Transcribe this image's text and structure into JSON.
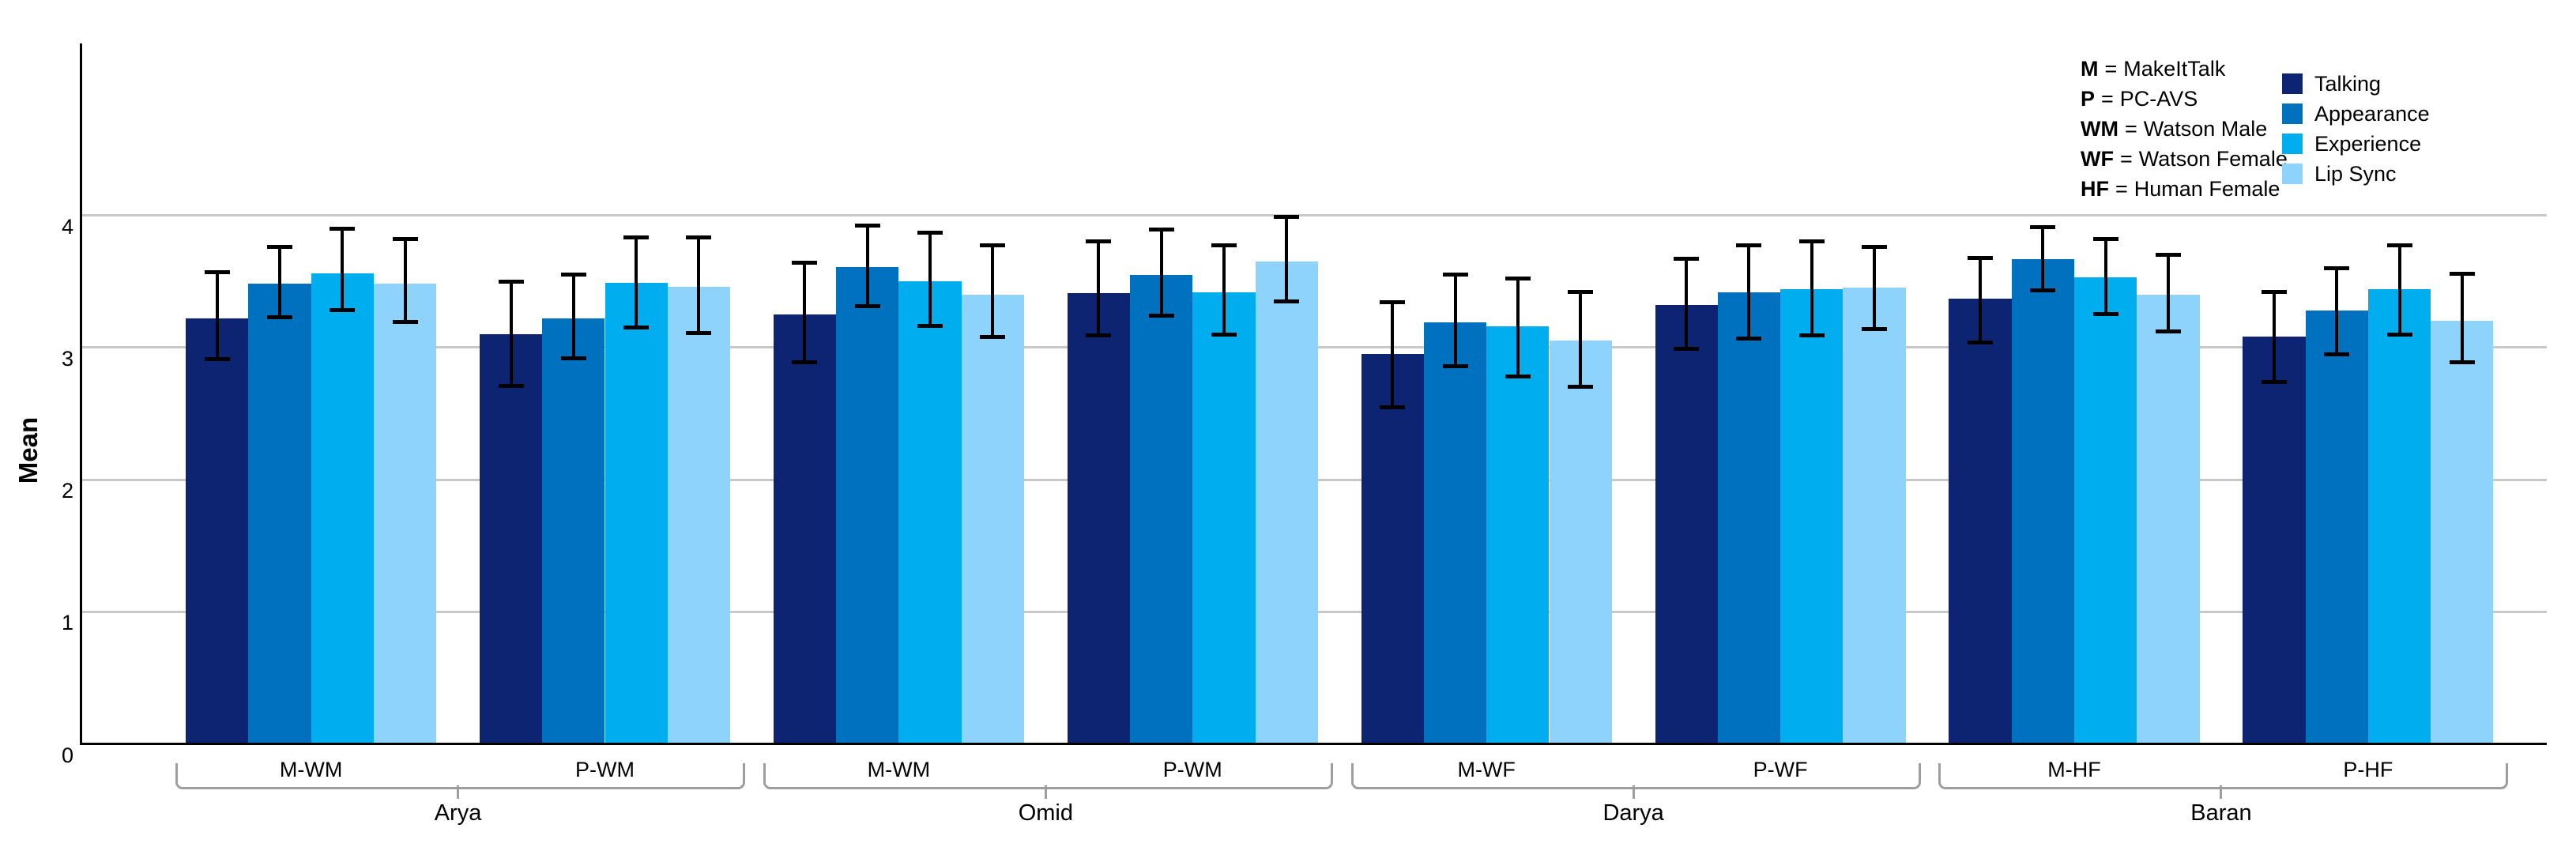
{
  "chart_data": {
    "type": "bar",
    "title": "",
    "xlabel": "",
    "ylabel": "Mean",
    "ylim": [
      0,
      5.3
    ],
    "yticks": [
      "0",
      "1",
      "2",
      "3",
      "4"
    ],
    "grid": "horizontal",
    "legend_position": "top-right",
    "colors": {
      "grid": "#C8C8C8",
      "axis": "#000000",
      "error_bar": "#000000",
      "bracket": "#9E9E9E"
    },
    "series": [
      {
        "name": "Talking",
        "color": "#0D2473"
      },
      {
        "name": "Appearance",
        "color": "#0071BE"
      },
      {
        "name": "Experience",
        "color": "#00AEEF"
      },
      {
        "name": "Lip Sync",
        "color": "#8ED3FB"
      }
    ],
    "groups": [
      {
        "label": "Arya",
        "clusters": [
          {
            "label": "M-WM",
            "values": [
              3.22,
              3.48,
              3.56,
              3.48
            ],
            "err_low": [
              2.91,
              3.23,
              3.28,
              3.19
            ],
            "err_high": [
              3.57,
              3.76,
              3.9,
              3.82
            ]
          },
          {
            "label": "P-WM",
            "values": [
              3.1,
              3.22,
              3.49,
              3.46
            ],
            "err_low": [
              2.71,
              2.92,
              3.15,
              3.11
            ],
            "err_high": [
              3.5,
              3.55,
              3.83,
              3.83
            ]
          }
        ]
      },
      {
        "label": "Omid",
        "clusters": [
          {
            "label": "M-WM",
            "values": [
              3.25,
              3.61,
              3.5,
              3.4
            ],
            "err_low": [
              2.89,
              3.31,
              3.16,
              3.08
            ],
            "err_high": [
              3.64,
              3.92,
              3.87,
              3.77
            ]
          },
          {
            "label": "P-WM",
            "values": [
              3.41,
              3.55,
              3.42,
              3.65
            ],
            "err_low": [
              3.09,
              3.24,
              3.1,
              3.35
            ],
            "err_high": [
              3.8,
              3.89,
              3.77,
              3.99
            ]
          }
        ]
      },
      {
        "label": "Darya",
        "clusters": [
          {
            "label": "M-WF",
            "values": [
              2.95,
              3.19,
              3.16,
              3.05
            ],
            "err_low": [
              2.55,
              2.86,
              2.78,
              2.7
            ],
            "err_high": [
              3.34,
              3.55,
              3.52,
              3.42
            ]
          },
          {
            "label": "P-WF",
            "values": [
              3.32,
              3.42,
              3.44,
              3.45
            ],
            "err_low": [
              2.99,
              3.07,
              3.09,
              3.14
            ],
            "err_high": [
              3.67,
              3.77,
              3.8,
              3.76
            ]
          }
        ]
      },
      {
        "label": "Baran",
        "clusters": [
          {
            "label": "M-HF",
            "values": [
              3.37,
              3.67,
              3.53,
              3.4
            ],
            "err_low": [
              3.04,
              3.43,
              3.25,
              3.12
            ],
            "err_high": [
              3.68,
              3.91,
              3.82,
              3.7
            ]
          },
          {
            "label": "P-HF",
            "values": [
              3.08,
              3.28,
              3.44,
              3.2
            ],
            "err_low": [
              2.74,
              2.95,
              3.1,
              2.89
            ],
            "err_high": [
              3.42,
              3.6,
              3.77,
              3.56
            ]
          }
        ]
      }
    ]
  },
  "abbrev": {
    "separator": "=",
    "items": [
      {
        "key": "M",
        "value": "MakeItTalk"
      },
      {
        "key": "P",
        "value": "PC-AVS"
      },
      {
        "key": "WM",
        "value": "Watson Male"
      },
      {
        "key": "WF",
        "value": "Watson Female"
      },
      {
        "key": "HF",
        "value": "Human Female"
      }
    ]
  }
}
